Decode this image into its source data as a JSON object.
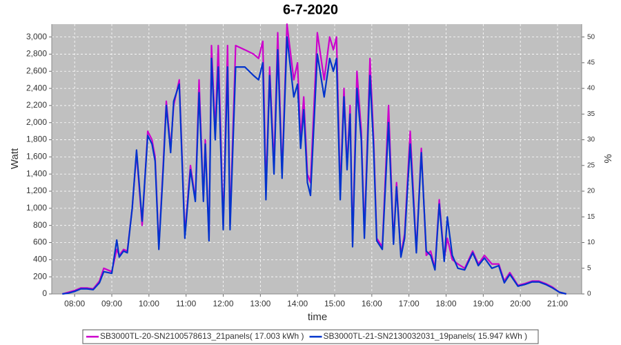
{
  "chart_data": {
    "type": "line",
    "title": "6-7-2020",
    "xlabel": "time",
    "ylabel": "Watt",
    "y2label": "%",
    "grid": true,
    "legend": "bottom",
    "x": [
      "07:40",
      "07:50",
      "08:00",
      "08:10",
      "08:20",
      "08:30",
      "08:40",
      "08:47",
      "09:00",
      "09:08",
      "09:12",
      "09:19",
      "09:25",
      "09:33",
      "09:40",
      "09:49",
      "09:58",
      "10:05",
      "10:10",
      "10:16",
      "10:23",
      "10:28",
      "10:35",
      "10:40",
      "10:49",
      "10:58",
      "11:07",
      "11:15",
      "11:21",
      "11:28",
      "11:31",
      "11:37",
      "11:41",
      "11:47",
      "11:52",
      "12:00",
      "12:07",
      "12:11",
      "12:20",
      "12:35",
      "12:49",
      "12:57",
      "13:04",
      "13:09",
      "13:15",
      "13:22",
      "13:28",
      "13:35",
      "13:43",
      "13:54",
      "14:00",
      "14:05",
      "14:10",
      "14:16",
      "14:21",
      "14:32",
      "14:43",
      "14:52",
      "14:58",
      "15:03",
      "15:09",
      "15:15",
      "15:20",
      "15:25",
      "15:29",
      "15:36",
      "15:43",
      "15:48",
      "15:57",
      "16:03",
      "16:08",
      "16:17",
      "16:27",
      "16:35",
      "16:40",
      "16:47",
      "16:53",
      "17:02",
      "17:12",
      "17:20",
      "17:28",
      "17:35",
      "17:42",
      "17:49",
      "17:57",
      "18:02",
      "18:10",
      "18:19",
      "18:30",
      "18:43",
      "18:52",
      "19:02",
      "19:14",
      "19:25",
      "19:34",
      "19:43",
      "19:56",
      "20:07",
      "20:19",
      "20:30",
      "20:41",
      "20:52",
      "21:03",
      "21:14"
    ],
    "xlim": [
      "07:23",
      "21:39"
    ],
    "xticks": [
      "08:00",
      "09:00",
      "10:00",
      "11:00",
      "12:00",
      "13:00",
      "14:00",
      "15:00",
      "16:00",
      "17:00",
      "18:00",
      "19:00",
      "20:00",
      "21:00"
    ],
    "ylim": [
      0,
      3150
    ],
    "yticks": [
      0,
      200,
      400,
      600,
      800,
      {
        "value": 1000,
        "label": "1,000"
      },
      {
        "value": 1200,
        "label": "1,200"
      },
      {
        "value": 1400,
        "label": "1,400"
      },
      {
        "value": 1600,
        "label": "1,600"
      },
      {
        "value": 1800,
        "label": "1,800"
      },
      {
        "value": 2000,
        "label": "2,000"
      },
      {
        "value": 2200,
        "label": "2,200"
      },
      {
        "value": 2400,
        "label": "2,400"
      },
      {
        "value": 2600,
        "label": "2,600"
      },
      {
        "value": 2800,
        "label": "2,800"
      },
      {
        "value": 3000,
        "label": "3,000"
      }
    ],
    "y2lim": [
      0,
      52.5
    ],
    "y2ticks": [
      0,
      5,
      10,
      15,
      20,
      25,
      30,
      35,
      40,
      45,
      50
    ],
    "series": [
      {
        "name": "SB3000TL-20-SN2100578613_21panels( 17.003 kWh )",
        "color": "#cc00cc",
        "values": [
          0,
          20,
          40,
          70,
          70,
          60,
          150,
          300,
          260,
          520,
          450,
          520,
          500,
          1000,
          1650,
          800,
          1900,
          1800,
          1600,
          550,
          1500,
          2250,
          1700,
          2200,
          2500,
          700,
          1500,
          1100,
          2500,
          1100,
          1800,
          650,
          2900,
          1900,
          2900,
          800,
          2900,
          800,
          2900,
          2850,
          2800,
          2750,
          2950,
          1200,
          2650,
          1500,
          3050,
          1400,
          3150,
          2500,
          2700,
          1800,
          2300,
          1400,
          1300,
          3050,
          2500,
          3000,
          2850,
          3000,
          1200,
          2400,
          1500,
          2200,
          600,
          2600,
          1900,
          700,
          2750,
          1800,
          650,
          550,
          2200,
          600,
          1300,
          450,
          700,
          1900,
          500,
          1700,
          450,
          500,
          300,
          1100,
          400,
          650,
          400,
          350,
          300,
          500,
          350,
          450,
          350,
          350,
          150,
          250,
          100,
          120,
          150,
          150,
          120,
          80,
          20,
          0
        ]
      },
      {
        "name": "SB3000TL-21-SN2130032031_19panels( 15.947 kWh )",
        "color": "#0033cc",
        "values": [
          0,
          10,
          30,
          60,
          60,
          50,
          130,
          260,
          240,
          630,
          430,
          500,
          480,
          1000,
          1680,
          850,
          1850,
          1750,
          1550,
          520,
          1450,
          2200,
          1650,
          2250,
          2450,
          650,
          1450,
          1080,
          2350,
          1080,
          1750,
          620,
          2750,
          1800,
          2650,
          750,
          2650,
          750,
          2650,
          2650,
          2550,
          2500,
          2700,
          1100,
          2550,
          1400,
          2850,
          1350,
          3000,
          2300,
          2450,
          1700,
          2150,
          1300,
          1150,
          2800,
          2300,
          2750,
          2600,
          2750,
          1100,
          2300,
          1450,
          2100,
          550,
          2400,
          1800,
          650,
          2550,
          1700,
          620,
          520,
          2000,
          580,
          1250,
          430,
          650,
          1750,
          480,
          1650,
          500,
          450,
          280,
          1050,
          380,
          900,
          450,
          300,
          280,
          480,
          330,
          420,
          300,
          330,
          130,
          230,
          90,
          110,
          140,
          140,
          110,
          70,
          20,
          0
        ]
      }
    ]
  }
}
